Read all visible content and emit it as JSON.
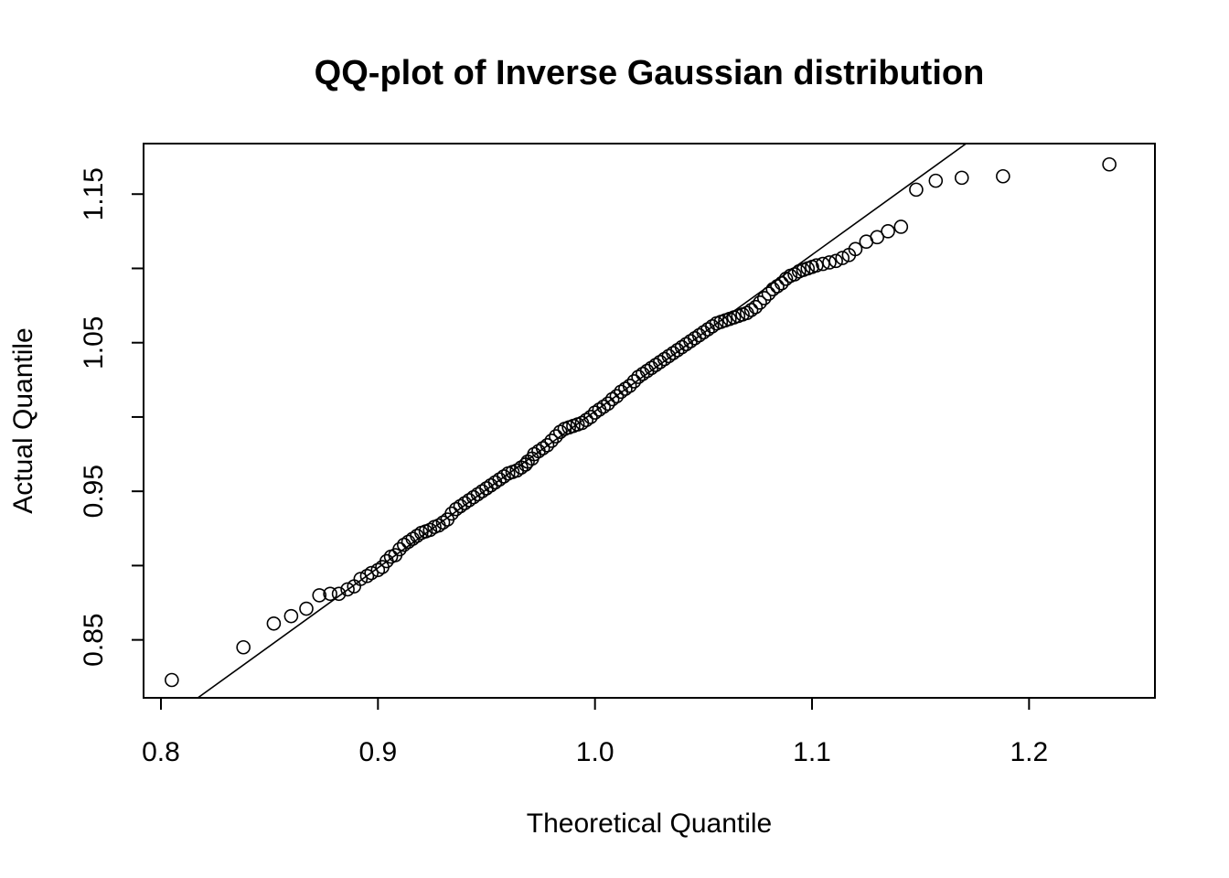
{
  "chart_data": {
    "type": "scatter",
    "title": "QQ-plot of Inverse Gaussian distribution",
    "xlabel": "Theoretical Quantile",
    "ylabel": "Actual Quantile",
    "xlim": [
      0.792,
      1.258
    ],
    "ylim": [
      0.811,
      1.184
    ],
    "x_ticks": [
      0.8,
      0.9,
      1.0,
      1.1,
      1.2
    ],
    "x_tick_labels": [
      "0.8",
      "0.9",
      "1.0",
      "1.1",
      "1.2"
    ],
    "y_ticks": [
      0.85,
      0.9,
      0.95,
      1.0,
      1.05,
      1.1,
      1.15
    ],
    "y_tick_labels": [
      "0.85",
      "",
      "0.95",
      "",
      "1.05",
      "",
      "1.15"
    ],
    "grid": false,
    "legend": "none",
    "reference_line": {
      "x": [
        0.817,
        1.171
      ],
      "y": [
        0.811,
        1.184
      ]
    },
    "series": [
      {
        "marker": "open-circle",
        "color": "#000000",
        "x": [
          0.805,
          0.838,
          0.852,
          0.86,
          0.867,
          0.873,
          0.878,
          0.882,
          0.886,
          0.889,
          0.892,
          0.895,
          0.897,
          0.9,
          0.902,
          0.904,
          0.906,
          0.908,
          0.91,
          0.912,
          0.914,
          0.916,
          0.918,
          0.92,
          0.922,
          0.924,
          0.926,
          0.928,
          0.93,
          0.932,
          0.934,
          0.936,
          0.938,
          0.94,
          0.942,
          0.944,
          0.946,
          0.948,
          0.95,
          0.952,
          0.954,
          0.956,
          0.958,
          0.96,
          0.962,
          0.964,
          0.966,
          0.968,
          0.969,
          0.971,
          0.972,
          0.974,
          0.976,
          0.978,
          0.98,
          0.982,
          0.984,
          0.986,
          0.988,
          0.99,
          0.992,
          0.994,
          0.996,
          0.998,
          1.0,
          1.002,
          1.004,
          1.006,
          1.008,
          1.01,
          1.012,
          1.014,
          1.016,
          1.018,
          1.02,
          1.022,
          1.024,
          1.026,
          1.028,
          1.03,
          1.032,
          1.034,
          1.036,
          1.038,
          1.04,
          1.042,
          1.044,
          1.046,
          1.048,
          1.05,
          1.052,
          1.054,
          1.056,
          1.058,
          1.06,
          1.062,
          1.064,
          1.066,
          1.068,
          1.07,
          1.072,
          1.074,
          1.076,
          1.078,
          1.08,
          1.082,
          1.084,
          1.086,
          1.088,
          1.09,
          1.092,
          1.094,
          1.096,
          1.098,
          1.1,
          1.102,
          1.105,
          1.108,
          1.111,
          1.114,
          1.117,
          1.12,
          1.125,
          1.13,
          1.135,
          1.141,
          1.148,
          1.157,
          1.169,
          1.188,
          1.237
        ],
        "y": [
          0.823,
          0.845,
          0.861,
          0.866,
          0.871,
          0.88,
          0.881,
          0.881,
          0.884,
          0.886,
          0.891,
          0.893,
          0.895,
          0.897,
          0.899,
          0.903,
          0.906,
          0.907,
          0.911,
          0.914,
          0.916,
          0.918,
          0.92,
          0.922,
          0.923,
          0.924,
          0.926,
          0.927,
          0.929,
          0.931,
          0.935,
          0.938,
          0.94,
          0.942,
          0.944,
          0.946,
          0.948,
          0.95,
          0.952,
          0.954,
          0.956,
          0.958,
          0.96,
          0.962,
          0.963,
          0.964,
          0.966,
          0.968,
          0.97,
          0.972,
          0.975,
          0.977,
          0.979,
          0.981,
          0.984,
          0.987,
          0.99,
          0.992,
          0.993,
          0.994,
          0.995,
          0.996,
          0.998,
          1.0,
          1.003,
          1.005,
          1.007,
          1.009,
          1.012,
          1.014,
          1.017,
          1.019,
          1.021,
          1.024,
          1.027,
          1.029,
          1.031,
          1.033,
          1.035,
          1.037,
          1.039,
          1.041,
          1.043,
          1.045,
          1.047,
          1.049,
          1.051,
          1.053,
          1.055,
          1.057,
          1.059,
          1.061,
          1.063,
          1.064,
          1.065,
          1.066,
          1.067,
          1.068,
          1.069,
          1.07,
          1.072,
          1.074,
          1.077,
          1.08,
          1.083,
          1.086,
          1.088,
          1.09,
          1.093,
          1.095,
          1.096,
          1.098,
          1.099,
          1.1,
          1.101,
          1.102,
          1.103,
          1.104,
          1.105,
          1.107,
          1.109,
          1.113,
          1.118,
          1.121,
          1.125,
          1.128,
          1.153,
          1.159,
          1.161,
          1.162,
          1.17
        ]
      }
    ]
  }
}
